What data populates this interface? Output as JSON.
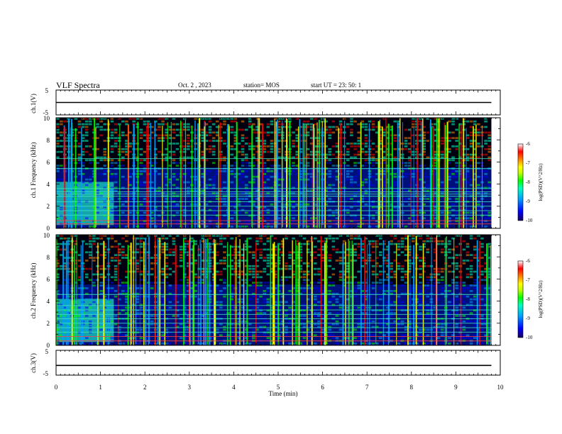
{
  "header": {
    "title": "VLF Spectra",
    "date": "Oct. 2 , 2023",
    "station": "station= MOS",
    "start_ut": "start UT = 23: 50: 1"
  },
  "chart_data": [
    {
      "type": "line",
      "panel": "ch1-voltage",
      "ylabel": "ch.1(V)",
      "ylim": [
        -5,
        5
      ],
      "yticks": [
        "5",
        "-5"
      ],
      "xlim": [
        0,
        10
      ],
      "series": [
        {
          "x": [
            0,
            9.8
          ],
          "values": [
            0,
            0
          ]
        }
      ]
    },
    {
      "type": "heatmap",
      "panel": "ch1-spectrogram",
      "ylabel": "ch.1 Frequency (kHz)",
      "ylim": [
        0,
        10
      ],
      "yticks": [
        "0",
        "2",
        "4",
        "6",
        "8",
        "10"
      ],
      "xlim": [
        0,
        10
      ],
      "data_end_min": 9.8,
      "dense_band_end_min": 1.3,
      "colorbar": {
        "label": "log(PSD)(V^2/Hz)",
        "range": [
          -10,
          -6
        ],
        "ticks": [
          "-6",
          "-7",
          "-8",
          "-9",
          "-10"
        ]
      },
      "lines_khz": [
        0.4,
        0.7,
        1.2,
        1.6,
        2.0,
        2.4,
        2.9,
        3.1,
        3.3,
        3.6,
        5.4,
        6.3
      ]
    },
    {
      "type": "heatmap",
      "panel": "ch2-spectrogram",
      "ylabel": "ch.2 Frequency (kHz)",
      "ylim": [
        0,
        10
      ],
      "yticks": [
        "0",
        "2",
        "4",
        "6",
        "8",
        "10"
      ],
      "xlim": [
        0,
        10
      ],
      "data_end_min": 9.8,
      "dense_band_end_min": 1.3,
      "colorbar": {
        "label": "log(PSD)(V^2/Hz)",
        "range": [
          -10,
          -6
        ],
        "ticks": [
          "-6",
          "-7",
          "-8",
          "-9",
          "-10"
        ]
      },
      "lines_khz": [
        0.4,
        0.8,
        1.2,
        1.6,
        2.0,
        2.4,
        2.8,
        3.2,
        3.6,
        4.6
      ]
    },
    {
      "type": "line",
      "panel": "ch3-voltage",
      "ylabel": "ch.3(V)",
      "ylim": [
        -5,
        5
      ],
      "yticks": [
        "5",
        "-5"
      ],
      "xlim": [
        0,
        10
      ],
      "series": [
        {
          "x": [
            0,
            9.8
          ],
          "values": [
            -1.1,
            -1.1
          ]
        }
      ]
    }
  ],
  "xaxis": {
    "label": "Time (min)",
    "ticks": [
      "0",
      "1",
      "2",
      "3",
      "4",
      "5",
      "6",
      "7",
      "8",
      "9",
      "10"
    ]
  },
  "colors": {
    "background": "#ffffff",
    "axis": "#000000",
    "colormap": [
      "#1a0060",
      "#0000ff",
      "#00a0ff",
      "#00ffc0",
      "#00ff00",
      "#c0ff00",
      "#ffff00",
      "#ff8000",
      "#ff0000",
      "#ffffff"
    ]
  }
}
